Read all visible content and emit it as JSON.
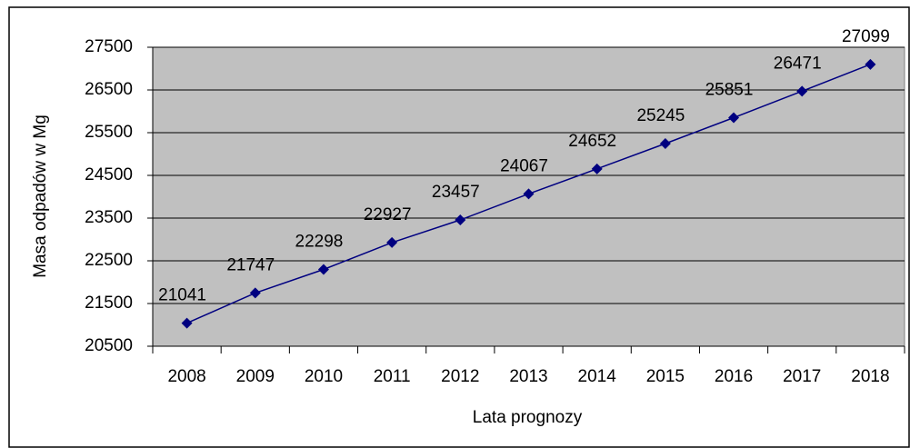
{
  "chart_data": {
    "type": "line",
    "x_label": "Lata prognozy",
    "y_label": "Masa odpadów w Mg",
    "categories": [
      "2008",
      "2009",
      "2010",
      "2011",
      "2012",
      "2013",
      "2014",
      "2015",
      "2016",
      "2017",
      "2018"
    ],
    "values": [
      21041,
      21747,
      22298,
      22927,
      23457,
      24067,
      24652,
      25245,
      25851,
      26471,
      27099
    ],
    "color": "#000080",
    "ylim": [
      20500,
      27500
    ],
    "yticks": [
      20500,
      21500,
      22500,
      23500,
      24500,
      25500,
      26500,
      27500
    ],
    "grid": true
  }
}
